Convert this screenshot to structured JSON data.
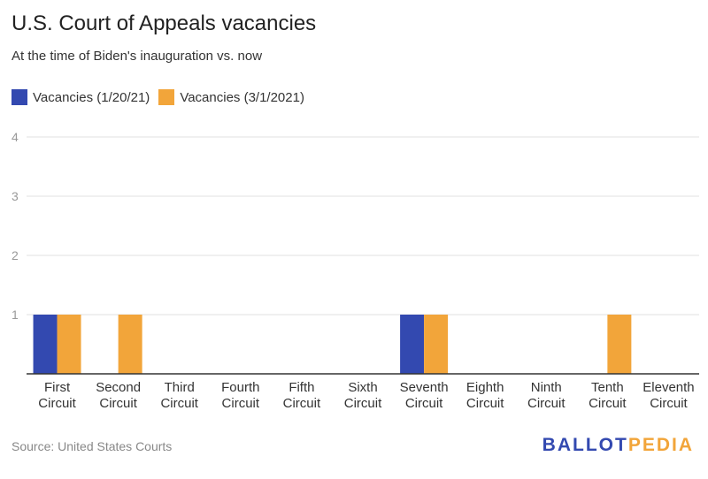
{
  "chart_data": {
    "type": "bar",
    "title": "U.S. Court of Appeals vacancies",
    "subtitle": "At the time of Biden's inauguration vs. now",
    "categories": [
      [
        "First",
        "Circuit"
      ],
      [
        "Second",
        "Circuit"
      ],
      [
        "Third",
        "Circuit"
      ],
      [
        "Fourth",
        "Circuit"
      ],
      [
        "Fifth",
        "Circuit"
      ],
      [
        "Sixth",
        "Circuit"
      ],
      [
        "Seventh",
        "Circuit"
      ],
      [
        "Eighth",
        "Circuit"
      ],
      [
        "Ninth",
        "Circuit"
      ],
      [
        "Tenth",
        "Circuit"
      ],
      [
        "Eleventh",
        "Circuit"
      ]
    ],
    "series": [
      {
        "name": "Vacancies (1/20/21)",
        "color": "#3349b0",
        "values": [
          1,
          0,
          0,
          0,
          0,
          0,
          1,
          0,
          0,
          0,
          0
        ]
      },
      {
        "name": "Vacancies (3/1/2021)",
        "color": "#f2a53a",
        "values": [
          1,
          1,
          0,
          0,
          0,
          0,
          1,
          0,
          0,
          1,
          0
        ]
      }
    ],
    "yticks": [
      1,
      2,
      3,
      4
    ],
    "ylim": [
      0,
      4.15
    ],
    "legend": "top-left",
    "grid": true,
    "source": "Source: United States Courts"
  },
  "logo": {
    "part1": "BALLOT",
    "part2": "PEDIA",
    "color1": "#3349b0",
    "color2": "#f2a53a"
  }
}
